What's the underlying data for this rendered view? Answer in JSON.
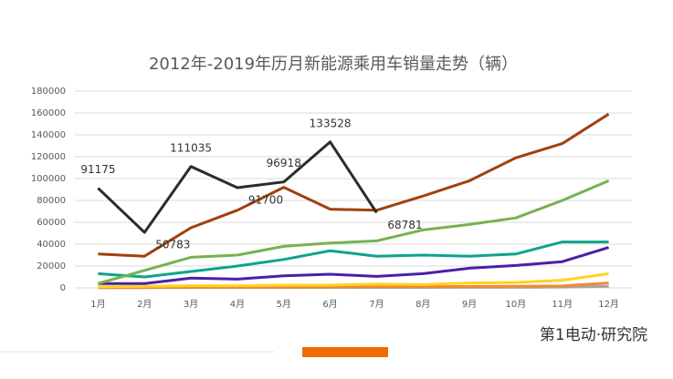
{
  "chart_data": {
    "type": "line",
    "title": "2012年-2019年历月新能源乘用车销量走势（辆）",
    "categories": [
      "1月",
      "2月",
      "3月",
      "4月",
      "5月",
      "6月",
      "7月",
      "8月",
      "9月",
      "10月",
      "11月",
      "12月"
    ],
    "ylim": [
      0,
      180000
    ],
    "yticks": [
      0,
      20000,
      40000,
      60000,
      80000,
      100000,
      120000,
      140000,
      160000,
      180000
    ],
    "grid": true,
    "series": [
      {
        "color": "#a5a5a5",
        "values": [
          200,
          200,
          300,
          300,
          300,
          400,
          400,
          400,
          500,
          500,
          700,
          1500
        ]
      },
      {
        "color": "#f08c2a",
        "values": [
          300,
          400,
          600,
          700,
          800,
          900,
          1000,
          1100,
          1300,
          1500,
          1800,
          4500
        ]
      },
      {
        "color": "#ffd320",
        "values": [
          1000,
          1500,
          2000,
          2000,
          2500,
          2500,
          3500,
          3000,
          4500,
          5000,
          7000,
          13000
        ]
      },
      {
        "color": "#4b1fa8",
        "values": [
          4000,
          4000,
          9000,
          8000,
          11000,
          12500,
          10500,
          13000,
          18000,
          20500,
          24000,
          37000
        ]
      },
      {
        "color": "#0aa58a",
        "values": [
          13000,
          10000,
          15000,
          20000,
          26000,
          34000,
          29000,
          30000,
          29000,
          31000,
          42000,
          42000
        ]
      },
      {
        "color": "#77b150",
        "values": [
          4000,
          16000,
          28000,
          30000,
          38000,
          41000,
          43000,
          53000,
          58000,
          64000,
          80000,
          98000
        ]
      },
      {
        "color": "#a0410d",
        "values": [
          31000,
          29000,
          55000,
          71000,
          92000,
          72000,
          71000,
          84000,
          98000,
          119000,
          132000,
          159000
        ]
      },
      {
        "color": "#2b2b2b",
        "values": [
          91175,
          50783,
          111035,
          91700,
          96918,
          133528,
          68781,
          null,
          null,
          null,
          null,
          null
        ],
        "value_labels": [
          "91175",
          "50783",
          "111035",
          "91700",
          "96918",
          "133528",
          "68781",
          null,
          null,
          null,
          null,
          null
        ]
      }
    ]
  },
  "brand": "第1电动·研究院"
}
